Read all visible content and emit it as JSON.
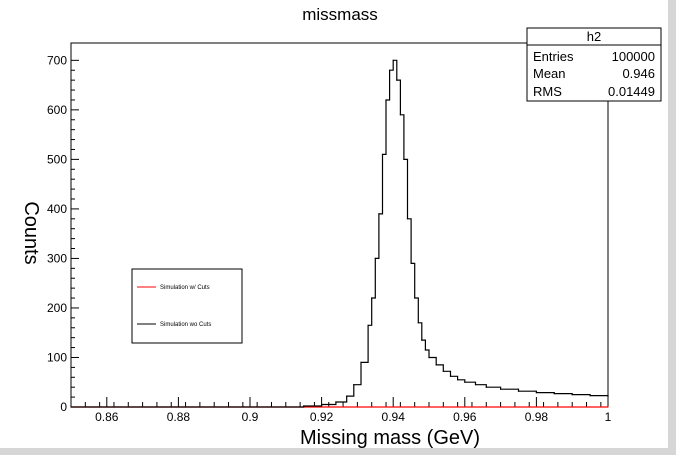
{
  "chart_data": {
    "type": "histogram",
    "title": "missmass",
    "xlabel": "Missing mass (GeV)",
    "ylabel": "Counts",
    "xlim": [
      0.85,
      1.0
    ],
    "ylim": [
      0,
      735
    ],
    "x_ticks": [
      {
        "value": 0.86,
        "label": "0.86"
      },
      {
        "value": 0.88,
        "label": "0.88"
      },
      {
        "value": 0.9,
        "label": "0.9"
      },
      {
        "value": 0.92,
        "label": "0.92"
      },
      {
        "value": 0.94,
        "label": "0.94"
      },
      {
        "value": 0.96,
        "label": "0.96"
      },
      {
        "value": 0.98,
        "label": "0.98"
      },
      {
        "value": 1.0,
        "label": "1"
      }
    ],
    "y_ticks": [
      {
        "value": 0,
        "label": "0"
      },
      {
        "value": 100,
        "label": "100"
      },
      {
        "value": 200,
        "label": "200"
      },
      {
        "value": 300,
        "label": "300"
      },
      {
        "value": 400,
        "label": "400"
      },
      {
        "value": 500,
        "label": "500"
      },
      {
        "value": 600,
        "label": "600"
      },
      {
        "value": 700,
        "label": "700"
      }
    ],
    "grid": false,
    "series": [
      {
        "name": "Simulation w/ Cuts",
        "color": "#ff0000",
        "x": [
          0.85,
          1.0
        ],
        "y": [
          0,
          0
        ]
      },
      {
        "name": "Simulation wo Cuts",
        "color": "#000000",
        "x": [
          0.85,
          0.905,
          0.915,
          0.92,
          0.924,
          0.927,
          0.929,
          0.931,
          0.933,
          0.934,
          0.935,
          0.936,
          0.937,
          0.938,
          0.939,
          0.94,
          0.941,
          0.942,
          0.943,
          0.944,
          0.945,
          0.946,
          0.947,
          0.948,
          0.949,
          0.95,
          0.952,
          0.954,
          0.956,
          0.958,
          0.96,
          0.963,
          0.966,
          0.97,
          0.975,
          0.98,
          0.985,
          0.99,
          0.995,
          1.0
        ],
        "y": [
          0,
          0,
          2,
          5,
          10,
          22,
          45,
          90,
          165,
          220,
          300,
          390,
          510,
          620,
          680,
          700,
          660,
          590,
          500,
          380,
          290,
          220,
          170,
          135,
          115,
          100,
          85,
          72,
          62,
          55,
          50,
          45,
          40,
          36,
          32,
          29,
          27,
          25,
          23,
          22
        ]
      }
    ],
    "legend": {
      "position": "left-middle",
      "entries": [
        {
          "label": "Simulation w/ Cuts",
          "color": "#ff0000"
        },
        {
          "label": "Simulation wo Cuts",
          "color": "#000000"
        }
      ]
    },
    "stats_box": {
      "position": "top-right",
      "title": "h2",
      "rows": [
        {
          "label": "Entries",
          "value": "100000"
        },
        {
          "label": "Mean",
          "value": "0.946"
        },
        {
          "label": "RMS",
          "value": "0.01449"
        }
      ]
    }
  }
}
